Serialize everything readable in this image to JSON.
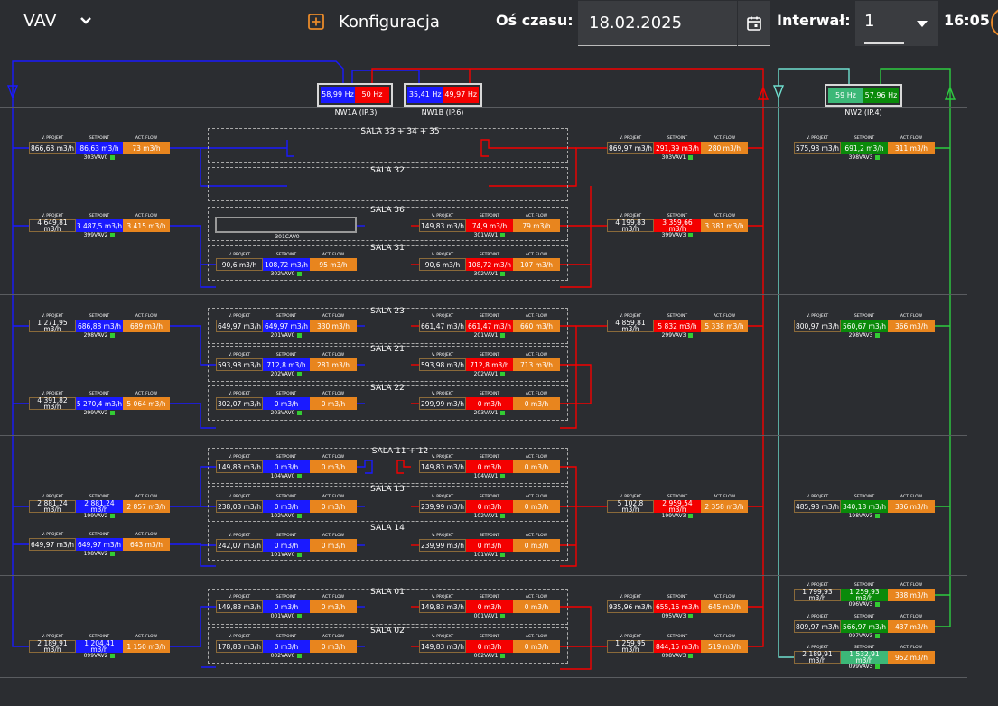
{
  "topbar": {
    "vav_label": "VAV",
    "konfiguracja_label": "Konfiguracja",
    "os_czasu_label": "Oś czasu:",
    "date_value": "18.02.2025",
    "interwal_label": "Interwał:",
    "interval_value": "1",
    "time": "16:05"
  },
  "headers": {
    "projekt": "V. PROJEKT",
    "setpoint": "SETPOINT",
    "flow": "ACT. FLOW"
  },
  "fans": [
    {
      "id": "nw1a",
      "left_value": "58,99 Hz",
      "right_value": "50 Hz",
      "left_color": "#1a1aff",
      "right_color": "#f40000",
      "label": "NW1A (IP.3)"
    },
    {
      "id": "nw1b",
      "left_value": "35,41 Hz",
      "right_value": "49,97 Hz",
      "left_color": "#1a1aff",
      "right_color": "#f40000",
      "label": "NW1B (IP.6)"
    },
    {
      "id": "nw2",
      "left_value": "59 Hz",
      "right_value": "57,96 Hz",
      "left_color": "#3cb878",
      "right_color": "#0a8a0a",
      "label": "NW2 (IP.4)"
    }
  ],
  "rooms": [
    {
      "name": "SALA 33 + 34 + 35"
    },
    {
      "name": "SALA 32"
    },
    {
      "name": "SALA 36"
    },
    {
      "name": "SALA 31"
    },
    {
      "name": "SALA 23"
    },
    {
      "name": "SALA 21"
    },
    {
      "name": "SALA 22"
    },
    {
      "name": "SALA 11 + 12"
    },
    {
      "name": "SALA 13"
    },
    {
      "name": "SALA 14"
    },
    {
      "name": "SALA 01"
    },
    {
      "name": "SALA 02"
    }
  ],
  "extra_labels": {
    "cav0": "301CAV0"
  },
  "units": [
    {
      "id": "303VAV0",
      "projekt": "866,63 m3/h",
      "setpoint": "86,63 m3/h",
      "flow": "73 m3/h",
      "color": "blue"
    },
    {
      "id": "399VAV2",
      "projekt": "4 649,81 m3/h",
      "setpoint": "3 487,5 m3/h",
      "flow": "3 415 m3/h",
      "color": "blue"
    },
    {
      "id": "302VAV0",
      "projekt": "90,6 m3/h",
      "setpoint": "108,72 m3/h",
      "flow": "95 m3/h",
      "color": "blue"
    },
    {
      "id": "298VAV2",
      "projekt": "1 271,95 m3/h",
      "setpoint": "686,88 m3/h",
      "flow": "689 m3/h",
      "color": "blue"
    },
    {
      "id": "201VAV0",
      "projekt": "649,97 m3/h",
      "setpoint": "649,97 m3/h",
      "flow": "330 m3/h",
      "color": "blue"
    },
    {
      "id": "202VAV0",
      "projekt": "593,98 m3/h",
      "setpoint": "712,8 m3/h",
      "flow": "281 m3/h",
      "color": "blue"
    },
    {
      "id": "299VAV2",
      "projekt": "4 391,82 m3/h",
      "setpoint": "5 270,4 m3/h",
      "flow": "5 064 m3/h",
      "color": "blue"
    },
    {
      "id": "203VAV0",
      "projekt": "302,07 m3/h",
      "setpoint": "0 m3/h",
      "flow": "0 m3/h",
      "color": "blue"
    },
    {
      "id": "104VAV0",
      "projekt": "149,83 m3/h",
      "setpoint": "0 m3/h",
      "flow": "0 m3/h",
      "color": "blue"
    },
    {
      "id": "199VAV2",
      "projekt": "2 881,24 m3/h",
      "setpoint": "2 881,24 m3/h",
      "flow": "2 857 m3/h",
      "color": "blue"
    },
    {
      "id": "102VAV0",
      "projekt": "238,03 m3/h",
      "setpoint": "0 m3/h",
      "flow": "0 m3/h",
      "color": "blue"
    },
    {
      "id": "198VAV2",
      "projekt": "649,97 m3/h",
      "setpoint": "649,97 m3/h",
      "flow": "643 m3/h",
      "color": "blue"
    },
    {
      "id": "101VAV0",
      "projekt": "242,07 m3/h",
      "setpoint": "0 m3/h",
      "flow": "0 m3/h",
      "color": "blue"
    },
    {
      "id": "001VAV0",
      "projekt": "149,83 m3/h",
      "setpoint": "0 m3/h",
      "flow": "0 m3/h",
      "color": "blue"
    },
    {
      "id": "099VAV2",
      "projekt": "2 189,91 m3/h",
      "setpoint": "1 204,41 m3/h",
      "flow": "1 150 m3/h",
      "color": "blue"
    },
    {
      "id": "002VAV0",
      "projekt": "178,83 m3/h",
      "setpoint": "0 m3/h",
      "flow": "0 m3/h",
      "color": "blue"
    },
    {
      "id": "301VAV1",
      "projekt": "149,83 m3/h",
      "setpoint": "74,9 m3/h",
      "flow": "79 m3/h",
      "color": "red"
    },
    {
      "id": "302VAV1",
      "projekt": "90,6 m3/h",
      "setpoint": "108,72 m3/h",
      "flow": "107 m3/h",
      "color": "red"
    },
    {
      "id": "201VAV1",
      "projekt": "661,47 m3/h",
      "setpoint": "661,47 m3/h",
      "flow": "660 m3/h",
      "color": "red"
    },
    {
      "id": "202VAV1",
      "projekt": "593,98 m3/h",
      "setpoint": "712,8 m3/h",
      "flow": "713 m3/h",
      "color": "red"
    },
    {
      "id": "203VAV1",
      "projekt": "299,99 m3/h",
      "setpoint": "0 m3/h",
      "flow": "0 m3/h",
      "color": "red"
    },
    {
      "id": "104VAV1",
      "projekt": "149,83 m3/h",
      "setpoint": "0 m3/h",
      "flow": "0 m3/h",
      "color": "red"
    },
    {
      "id": "102VAV1",
      "projekt": "239,99 m3/h",
      "setpoint": "0 m3/h",
      "flow": "0 m3/h",
      "color": "red"
    },
    {
      "id": "101VAV1",
      "projekt": "239,99 m3/h",
      "setpoint": "0 m3/h",
      "flow": "0 m3/h",
      "color": "red"
    },
    {
      "id": "001VAV1",
      "projekt": "149,83 m3/h",
      "setpoint": "0 m3/h",
      "flow": "0 m3/h",
      "color": "red"
    },
    {
      "id": "002VAV1",
      "projekt": "149,83 m3/h",
      "setpoint": "0 m3/h",
      "flow": "0 m3/h",
      "color": "red"
    },
    {
      "id": "303VAV1",
      "projekt": "869,97 m3/h",
      "setpoint": "291,39 m3/h",
      "flow": "280 m3/h",
      "color": "red"
    },
    {
      "id": "399VAV3",
      "projekt": "4 199,83 m3/h",
      "setpoint": "3 359,66 m3/h",
      "flow": "3 381 m3/h",
      "color": "red"
    },
    {
      "id": "299VAV3",
      "projekt": "4 859,81 m3/h",
      "setpoint": "5 832 m3/h",
      "flow": "5 338 m3/h",
      "color": "red"
    },
    {
      "id": "199VAV3",
      "projekt": "5 102,8 m3/h",
      "setpoint": "2 959,54 m3/h",
      "flow": "2 358 m3/h",
      "color": "red"
    },
    {
      "id": "095VAV3",
      "projekt": "935,96 m3/h",
      "setpoint": "655,16 m3/h",
      "flow": "645 m3/h",
      "color": "red"
    },
    {
      "id": "098VAV3",
      "projekt": "1 259,95 m3/h",
      "setpoint": "844,15 m3/h",
      "flow": "519 m3/h",
      "color": "red"
    },
    {
      "id": "398VAV3",
      "projekt": "575,98 m3/h",
      "setpoint": "691,2 m3/h",
      "flow": "311 m3/h",
      "color": "green"
    },
    {
      "id": "298VAV3",
      "projekt": "800,97 m3/h",
      "setpoint": "560,67 m3/h",
      "flow": "366 m3/h",
      "color": "green"
    },
    {
      "id": "198VAV3",
      "projekt": "485,98 m3/h",
      "setpoint": "340,18 m3/h",
      "flow": "336 m3/h",
      "color": "green"
    },
    {
      "id": "096VAV3",
      "projekt": "1 799,93 m3/h",
      "setpoint": "1 259,93 m3/h",
      "flow": "338 m3/h",
      "color": "green"
    },
    {
      "id": "097VAV3",
      "projekt": "809,97 m3/h",
      "setpoint": "566,97 m3/h",
      "flow": "437 m3/h",
      "color": "green"
    },
    {
      "id": "099VAV3",
      "projekt": "2 189,91 m3/h",
      "setpoint": "1 532,91 m3/h",
      "flow": "952 m3/h",
      "color": "lgreen"
    }
  ]
}
